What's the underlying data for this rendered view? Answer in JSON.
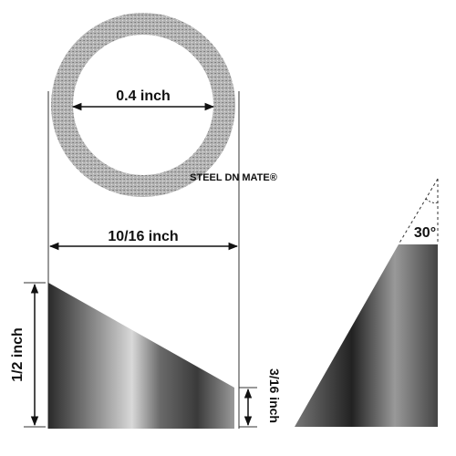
{
  "inner_diameter": "0.4 inch",
  "brand": "STEEL DN MATE®",
  "outer_diameter": "10/16 inch",
  "height": "1/2 inch",
  "short_height": "3/16 inch",
  "angle": "30°"
}
